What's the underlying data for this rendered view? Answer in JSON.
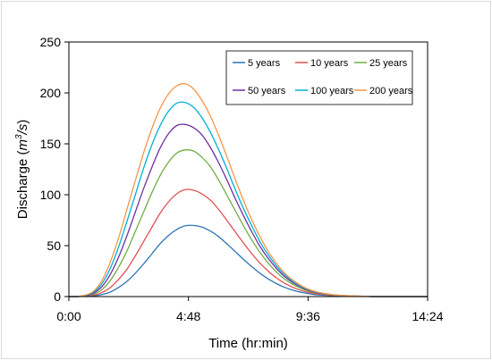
{
  "chart_data": {
    "type": "line",
    "xlabel": "Time (hr:min)",
    "ylabel_parts": [
      "Discharge (",
      "m",
      "3",
      "/s",
      ")"
    ],
    "x_ticks": [
      "0:00",
      "4:48",
      "9:36",
      "14:24"
    ],
    "x_tick_minutes": [
      0,
      288,
      576,
      864
    ],
    "xlim_minutes": [
      0,
      864
    ],
    "y_ticks": [
      "0",
      "50",
      "100",
      "150",
      "200",
      "250"
    ],
    "y_tick_values": [
      0,
      50,
      100,
      150,
      200,
      250
    ],
    "ylim": [
      0,
      250
    ],
    "grid": false,
    "legend_position": "top-right",
    "x_minutes": [
      0,
      20,
      40,
      60,
      80,
      100,
      120,
      140,
      160,
      180,
      200,
      220,
      240,
      260,
      280,
      300,
      320,
      340,
      360,
      380,
      400,
      420,
      440,
      460,
      480,
      500,
      520,
      540,
      560,
      580,
      600,
      640,
      680,
      720,
      760,
      800,
      864
    ],
    "series": [
      {
        "name": "5 years",
        "color": "#2e75b6",
        "values": [
          0,
          0,
          0.3,
          0.7,
          2.0,
          4.5,
          9,
          15,
          23,
          32,
          42,
          52,
          60,
          66,
          69.5,
          69.8,
          68.3,
          64.6,
          59.0,
          52.0,
          44.5,
          36.8,
          29.6,
          23.0,
          17.4,
          12.7,
          9.0,
          6.2,
          4.1,
          2.7,
          1.7,
          0.7,
          0.3,
          0.1,
          0,
          0,
          0
        ]
      },
      {
        "name": "10 years",
        "color": "#e05050",
        "values": [
          0,
          0,
          0.5,
          1.5,
          4.0,
          9,
          17,
          27,
          40,
          54,
          68,
          82,
          93,
          101,
          105,
          104.5,
          101,
          95,
          86,
          75,
          64,
          53,
          42.5,
          33,
          25,
          18.3,
          13,
          9,
          6,
          3.9,
          2.5,
          1.0,
          0.4,
          0.1,
          0,
          0,
          0
        ]
      },
      {
        "name": "25 years",
        "color": "#70ad47",
        "values": [
          0,
          0,
          0.8,
          2.5,
          7,
          16,
          29,
          45,
          64,
          83,
          102,
          119,
          132,
          141,
          144,
          143,
          137,
          128,
          115,
          100,
          85,
          70,
          56,
          43.5,
          33,
          24,
          17,
          11.8,
          7.9,
          5.1,
          3.3,
          1.3,
          0.5,
          0.2,
          0,
          0,
          0
        ]
      },
      {
        "name": "50 years",
        "color": "#7030a0",
        "values": [
          0,
          0,
          1,
          3.5,
          10,
          22,
          39,
          60,
          83,
          106,
          127,
          146,
          160,
          168,
          169,
          166,
          159,
          147,
          132,
          115,
          97,
          80,
          64,
          49.5,
          37.5,
          27.5,
          19.5,
          13.5,
          9,
          5.8,
          3.7,
          1.5,
          0.6,
          0.2,
          0,
          0,
          0
        ]
      },
      {
        "name": "100 years",
        "color": "#00b0d8",
        "values": [
          0,
          0,
          1.2,
          4.5,
          13,
          28,
          49,
          74,
          100,
          126,
          149,
          168,
          182,
          190,
          190.5,
          186,
          176,
          162,
          145,
          126,
          106,
          87,
          70,
          54,
          41,
          30,
          21.3,
          14.7,
          9.8,
          6.3,
          4.0,
          1.6,
          0.6,
          0.2,
          0,
          0,
          0
        ]
      },
      {
        "name": "200 years",
        "color": "#f79646",
        "values": [
          0,
          0,
          1.5,
          5.5,
          16,
          34,
          58,
          86,
          114,
          141,
          165,
          185,
          199,
          207,
          209,
          204,
          193,
          178,
          159,
          138,
          116,
          95,
          76,
          59,
          44.5,
          32.5,
          23,
          16,
          10.6,
          6.8,
          4.3,
          1.7,
          0.7,
          0.2,
          0,
          0,
          0
        ]
      }
    ]
  }
}
